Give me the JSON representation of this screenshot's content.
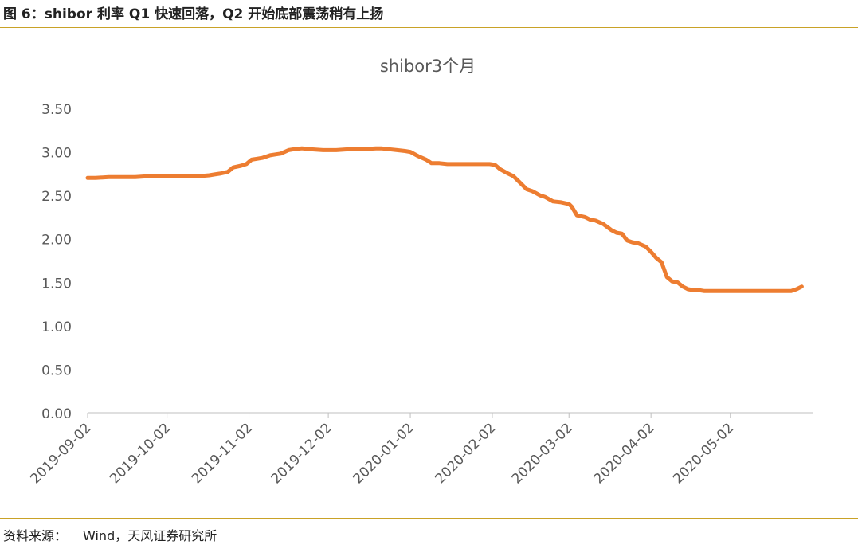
{
  "figure": {
    "title": "图 6：shibor 利率 Q1 快速回落，Q2 开始底部震荡稍有上扬",
    "source_label": "资料来源：",
    "source_text": "Wind，天风证券研究所"
  },
  "colors": {
    "line": "#ED7D31",
    "axis": "#BFBFBF",
    "text": "#595959",
    "rule": "#C9A227"
  },
  "chart_data": {
    "type": "line",
    "title": "shibor3个月",
    "xlabel": "",
    "ylabel": "",
    "ylim": [
      0,
      3.5
    ],
    "yticks": [
      "0.00",
      "0.50",
      "1.00",
      "1.50",
      "2.00",
      "2.50",
      "3.00",
      "3.50"
    ],
    "xticks": [
      "2019-09-02",
      "2019-10-02",
      "2019-11-02",
      "2019-12-02",
      "2020-01-02",
      "2020-02-02",
      "2020-03-02",
      "2020-04-02",
      "2020-05-02"
    ],
    "grid": false,
    "legend": "none",
    "series": [
      {
        "name": "shibor3个月",
        "x": [
          "2019-09-02",
          "2019-09-05",
          "2019-09-10",
          "2019-09-15",
          "2019-09-20",
          "2019-09-25",
          "2019-09-28",
          "2019-10-02",
          "2019-10-08",
          "2019-10-10",
          "2019-10-14",
          "2019-10-18",
          "2019-10-20",
          "2019-10-22",
          "2019-10-25",
          "2019-10-27",
          "2019-10-30",
          "2019-11-01",
          "2019-11-03",
          "2019-11-05",
          "2019-11-07",
          "2019-11-10",
          "2019-11-12",
          "2019-11-14",
          "2019-11-17",
          "2019-11-19",
          "2019-11-22",
          "2019-11-25",
          "2019-11-30",
          "2019-12-05",
          "2019-12-10",
          "2019-12-15",
          "2019-12-20",
          "2019-12-22",
          "2019-12-25",
          "2019-12-28",
          "2019-12-31",
          "2020-01-02",
          "2020-01-05",
          "2020-01-08",
          "2020-01-10",
          "2020-01-13",
          "2020-01-16",
          "2020-01-20",
          "2020-01-23",
          "2020-02-01",
          "2020-02-03",
          "2020-02-05",
          "2020-02-08",
          "2020-02-10",
          "2020-02-12",
          "2020-02-15",
          "2020-02-17",
          "2020-02-20",
          "2020-02-22",
          "2020-02-25",
          "2020-02-28",
          "2020-03-02",
          "2020-03-03",
          "2020-03-05",
          "2020-03-08",
          "2020-03-10",
          "2020-03-12",
          "2020-03-15",
          "2020-03-18",
          "2020-03-20",
          "2020-03-22",
          "2020-03-24",
          "2020-03-26",
          "2020-03-28",
          "2020-03-31",
          "2020-04-02",
          "2020-04-04",
          "2020-04-06",
          "2020-04-08",
          "2020-04-10",
          "2020-04-12",
          "2020-04-14",
          "2020-04-16",
          "2020-04-18",
          "2020-04-20",
          "2020-04-22",
          "2020-04-25",
          "2020-05-02",
          "2020-05-10",
          "2020-05-20",
          "2020-05-25",
          "2020-05-27",
          "2020-05-29"
        ],
        "values": [
          2.7,
          2.7,
          2.71,
          2.71,
          2.71,
          2.72,
          2.72,
          2.72,
          2.72,
          2.72,
          2.72,
          2.73,
          2.74,
          2.75,
          2.77,
          2.82,
          2.84,
          2.86,
          2.91,
          2.92,
          2.93,
          2.96,
          2.97,
          2.98,
          3.02,
          3.03,
          3.04,
          3.03,
          3.02,
          3.02,
          3.03,
          3.03,
          3.04,
          3.04,
          3.03,
          3.02,
          3.01,
          3.0,
          2.95,
          2.91,
          2.87,
          2.87,
          2.86,
          2.86,
          2.86,
          2.86,
          2.85,
          2.8,
          2.75,
          2.72,
          2.66,
          2.57,
          2.55,
          2.5,
          2.48,
          2.43,
          2.42,
          2.4,
          2.37,
          2.27,
          2.25,
          2.22,
          2.21,
          2.17,
          2.1,
          2.07,
          2.06,
          1.98,
          1.96,
          1.95,
          1.91,
          1.85,
          1.78,
          1.73,
          1.56,
          1.51,
          1.5,
          1.45,
          1.42,
          1.41,
          1.41,
          1.4,
          1.4,
          1.4,
          1.4,
          1.4,
          1.4,
          1.42,
          1.45
        ]
      }
    ]
  }
}
